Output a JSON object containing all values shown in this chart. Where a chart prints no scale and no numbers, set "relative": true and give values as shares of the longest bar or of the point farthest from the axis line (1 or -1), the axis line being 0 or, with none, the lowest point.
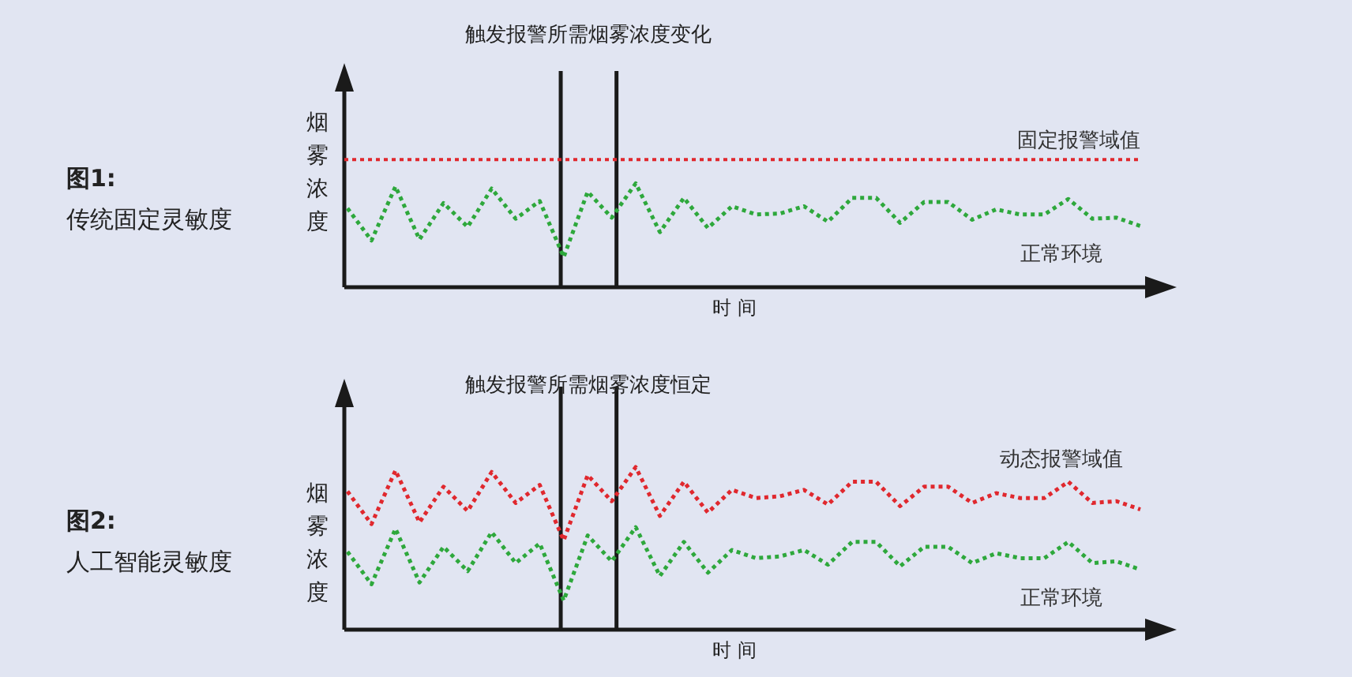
{
  "chart_data": [
    {
      "type": "line",
      "title": "传统固定灵敏度",
      "ylabel": "烟雾浓度",
      "xlabel": "时 间",
      "relative": true,
      "line_style": "dotted",
      "annotations": [
        "触发报警所需烟雾浓度变化",
        "图1:"
      ],
      "categories": [
        null,
        null,
        null,
        null,
        null,
        null,
        null,
        null,
        null,
        null,
        null,
        null,
        null,
        null,
        null,
        null,
        null,
        null,
        null,
        null,
        null,
        null,
        null,
        null,
        null,
        null,
        null,
        null,
        null,
        null,
        null,
        null,
        null,
        null
      ],
      "series": [
        {
          "name": "正常环境",
          "color": "#2ea83c",
          "values": [
            0.76,
            0.45,
            0.97,
            0.46,
            0.81,
            0.58,
            0.95,
            0.66,
            0.83,
            0.29,
            0.92,
            0.67,
            1,
            0.53,
            0.86,
            0.57,
            0.78,
            0.7,
            0.71,
            0.78,
            0.63,
            0.86,
            0.86,
            0.62,
            0.82,
            0.82,
            0.65,
            0.75,
            0.7,
            0.7,
            0.85,
            0.66,
            0.67,
            0.59
          ]
        }
      ],
      "ref_lines": [
        {
          "axis": "y",
          "value": 1.23,
          "label": "固定报警域值",
          "color": "#e0282e",
          "line_style": "dotted"
        }
      ]
    },
    {
      "type": "line",
      "title": "人工智能灵敏度",
      "ylabel": "烟雾浓度",
      "xlabel": "时 间",
      "relative": true,
      "line_style": "dotted",
      "annotations": [
        "触发报警所需烟雾浓度恒定",
        "图2:"
      ],
      "categories": [
        null,
        null,
        null,
        null,
        null,
        null,
        null,
        null,
        null,
        null,
        null,
        null,
        null,
        null,
        null,
        null,
        null,
        null,
        null,
        null,
        null,
        null,
        null,
        null,
        null,
        null,
        null,
        null,
        null,
        null,
        null,
        null,
        null,
        null
      ],
      "series": [
        {
          "name": "动态报警域值",
          "color": "#e0282e",
          "values": [
            0.85,
            0.65,
            0.98,
            0.66,
            0.88,
            0.73,
            0.97,
            0.78,
            0.89,
            0.55,
            0.95,
            0.79,
            1,
            0.7,
            0.91,
            0.72,
            0.86,
            0.81,
            0.82,
            0.86,
            0.77,
            0.91,
            0.91,
            0.76,
            0.88,
            0.88,
            0.78,
            0.84,
            0.81,
            0.81,
            0.91,
            0.78,
            0.79,
            0.74
          ]
        },
        {
          "name": "正常环境",
          "color": "#2ea83c",
          "values": [
            0.48,
            0.28,
            0.62,
            0.29,
            0.51,
            0.36,
            0.6,
            0.41,
            0.53,
            0.18,
            0.58,
            0.42,
            0.63,
            0.33,
            0.54,
            0.35,
            0.49,
            0.44,
            0.45,
            0.49,
            0.4,
            0.54,
            0.54,
            0.39,
            0.51,
            0.51,
            0.41,
            0.47,
            0.44,
            0.44,
            0.54,
            0.41,
            0.42,
            0.37
          ]
        }
      ]
    }
  ]
}
